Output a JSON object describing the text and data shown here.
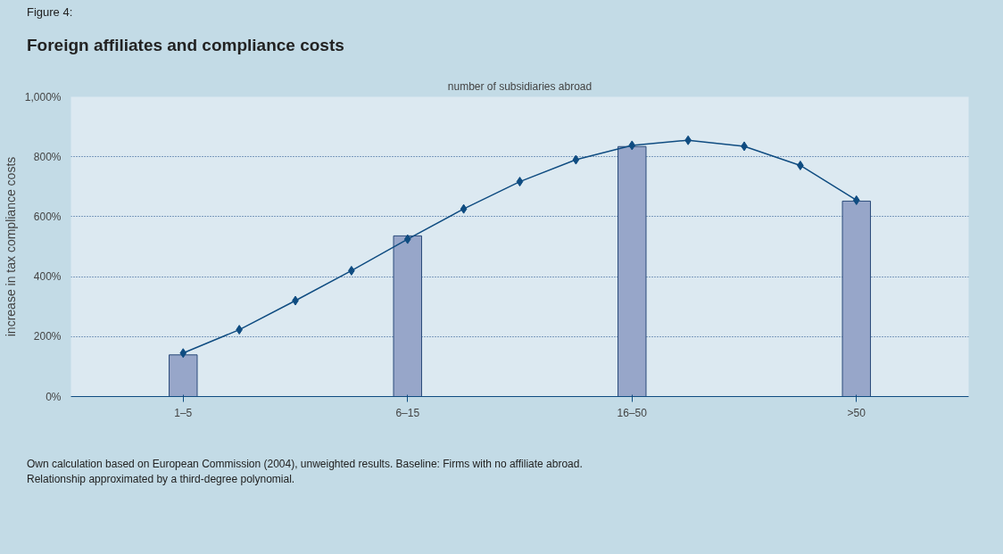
{
  "chart_data": {
    "type": "bar",
    "subtitle": "Figure 4:",
    "title": "Foreign affiliates and compliance costs",
    "xlabel": "number of subsidiaries abroad",
    "ylabel": "increase in tax compliance costs",
    "categories": [
      "1–5",
      null,
      null,
      null,
      "6–15",
      null,
      null,
      null,
      "16–50",
      null,
      null,
      null,
      ">50"
    ],
    "series": [
      {
        "color": "#97a6c9",
        "values": [
          139,
          null,
          null,
          null,
          536,
          null,
          null,
          null,
          834,
          null,
          null,
          null,
          652
        ]
      },
      {
        "type": "line",
        "color": "#0f4c81",
        "values": [
          145,
          223,
          320,
          420,
          525,
          626,
          717,
          790,
          838,
          855,
          835,
          771,
          655
        ],
        "marker": "diamond"
      }
    ],
    "ylim": [
      0,
      1000
    ],
    "yticks": [
      {
        "value": 0,
        "label": "0%"
      },
      {
        "value": 200,
        "label": "200%"
      },
      {
        "value": 400,
        "label": "400%"
      },
      {
        "value": 600,
        "label": "600%"
      },
      {
        "value": 800,
        "label": "800%"
      },
      {
        "value": 1000,
        "label": "1,000%"
      }
    ],
    "grid": "y",
    "annotations": [
      "Own calculation based on European Commission (2004), unweighted results. Baseline: Firms with no affiliate abroad.",
      "Relationship approximated by a third-degree polynomial."
    ]
  }
}
